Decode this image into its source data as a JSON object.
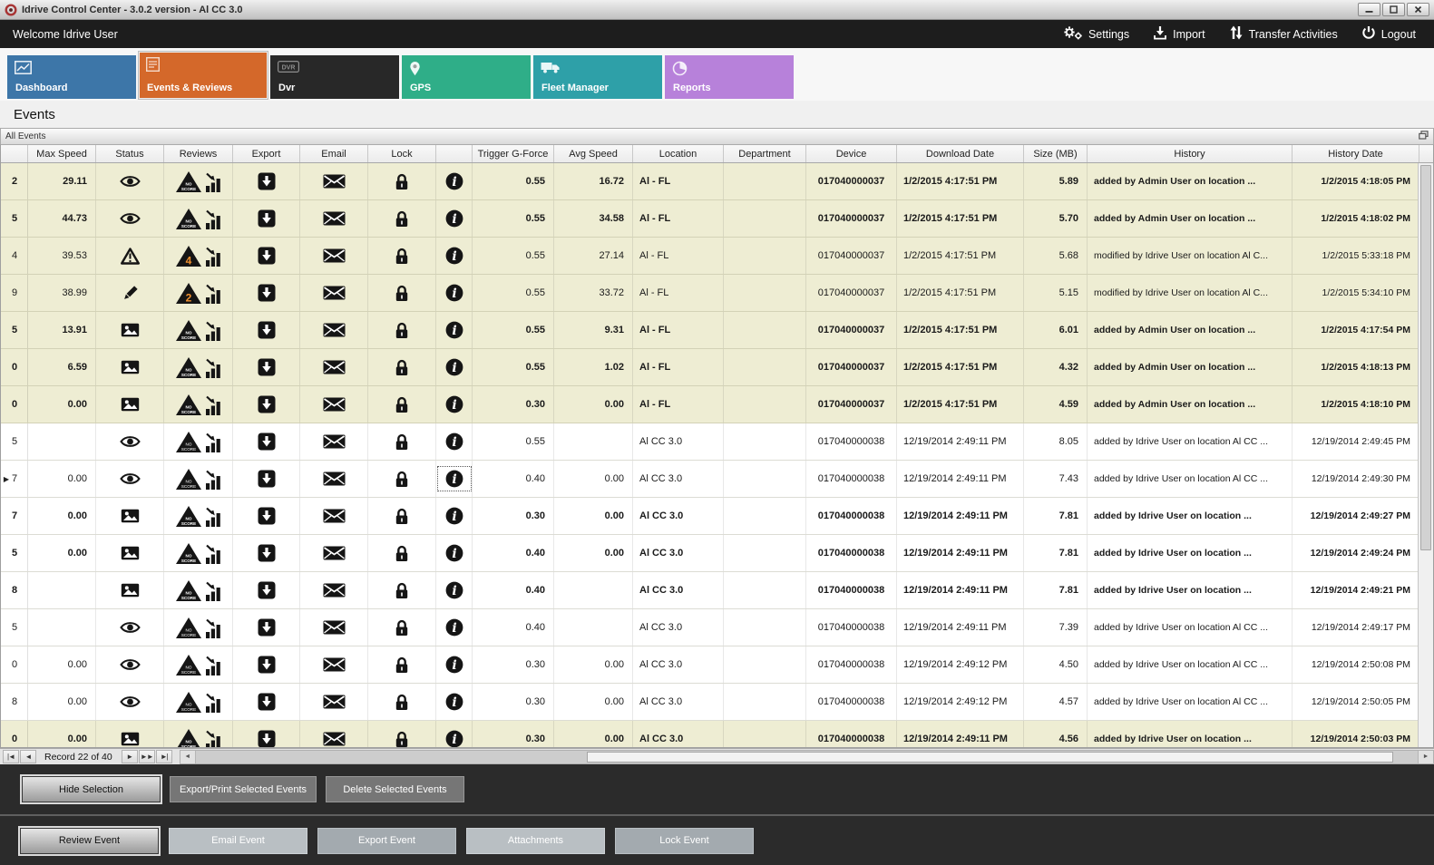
{
  "window": {
    "title": "Idrive Control Center - 3.0.2 version - Al CC 3.0"
  },
  "topbar": {
    "welcome": "Welcome Idrive User",
    "actions": [
      {
        "label": "Settings",
        "icon": "gears-icon"
      },
      {
        "label": "Import",
        "icon": "import-icon"
      },
      {
        "label": "Transfer Activities",
        "icon": "transfer-icon"
      },
      {
        "label": "Logout",
        "icon": "power-icon"
      }
    ]
  },
  "tabs": [
    {
      "label": "Dashboard",
      "color": "#3D76A8",
      "active": false
    },
    {
      "label": "Events & Reviews",
      "color": "#D4682A",
      "active": true
    },
    {
      "label": "Dvr",
      "color": "#282828",
      "active": false
    },
    {
      "label": "GPS",
      "color": "#2FAE88",
      "active": false
    },
    {
      "label": "Fleet Manager",
      "color": "#2EA0A8",
      "active": false
    },
    {
      "label": "Reports",
      "color": "#B781DA",
      "active": false
    }
  ],
  "page_title": "Events",
  "panel": {
    "title": "All Events"
  },
  "table": {
    "columns": [
      "",
      "Max Speed",
      "Status",
      "Reviews",
      "Export",
      "Email",
      "Lock",
      "",
      "Trigger G-Force",
      "Avg Speed",
      "Location",
      "Department",
      "Device",
      "Download Date",
      "Size (MB)",
      "History",
      "History Date"
    ],
    "rows": [
      {
        "id": "2",
        "current": false,
        "focused": false,
        "bold": true,
        "shade": "beige",
        "max_speed": "29.11",
        "status_icon": "eye",
        "review_badge": "NO SCORE",
        "trigger_g_force": "0.55",
        "avg_speed": "16.72",
        "location": "Al - FL",
        "department": "",
        "device": "017040000037",
        "download_date": "1/2/2015 4:17:51 PM",
        "size_mb": "5.89",
        "history": "added by Admin User on location ...",
        "history_date": "1/2/2015 4:18:05 PM"
      },
      {
        "id": "5",
        "current": false,
        "focused": false,
        "bold": true,
        "shade": "beige",
        "max_speed": "44.73",
        "status_icon": "eye",
        "review_badge": "NO SCORE",
        "trigger_g_force": "0.55",
        "avg_speed": "34.58",
        "location": "Al - FL",
        "department": "",
        "device": "017040000037",
        "download_date": "1/2/2015 4:17:51 PM",
        "size_mb": "5.70",
        "history": "added by Admin User on location ...",
        "history_date": "1/2/2015 4:18:02 PM"
      },
      {
        "id": "4",
        "current": false,
        "focused": false,
        "bold": false,
        "shade": "beige",
        "max_speed": "39.53",
        "status_icon": "warning",
        "review_badge": "4",
        "trigger_g_force": "0.55",
        "avg_speed": "27.14",
        "location": "Al - FL",
        "department": "",
        "device": "017040000037",
        "download_date": "1/2/2015 4:17:51 PM",
        "size_mb": "5.68",
        "history": "modified by Idrive User on location Al C...",
        "history_date": "1/2/2015 5:33:18 PM"
      },
      {
        "id": "9",
        "current": false,
        "focused": false,
        "bold": false,
        "shade": "beige",
        "max_speed": "38.99",
        "status_icon": "pencil",
        "review_badge": "2",
        "trigger_g_force": "0.55",
        "avg_speed": "33.72",
        "location": "Al - FL",
        "department": "",
        "device": "017040000037",
        "download_date": "1/2/2015 4:17:51 PM",
        "size_mb": "5.15",
        "history": "modified by Idrive User on location Al C...",
        "history_date": "1/2/2015 5:34:10 PM"
      },
      {
        "id": "5",
        "current": false,
        "focused": false,
        "bold": true,
        "shade": "beige",
        "max_speed": "13.91",
        "status_icon": "image",
        "review_badge": "NO SCORE",
        "trigger_g_force": "0.55",
        "avg_speed": "9.31",
        "location": "Al - FL",
        "department": "",
        "device": "017040000037",
        "download_date": "1/2/2015 4:17:51 PM",
        "size_mb": "6.01",
        "history": "added by Admin User on location ...",
        "history_date": "1/2/2015 4:17:54 PM"
      },
      {
        "id": "0",
        "current": false,
        "focused": false,
        "bold": true,
        "shade": "beige",
        "max_speed": "6.59",
        "status_icon": "image",
        "review_badge": "NO SCORE",
        "trigger_g_force": "0.55",
        "avg_speed": "1.02",
        "location": "Al - FL",
        "department": "",
        "device": "017040000037",
        "download_date": "1/2/2015 4:17:51 PM",
        "size_mb": "4.32",
        "history": "added by Admin User on location ...",
        "history_date": "1/2/2015 4:18:13 PM"
      },
      {
        "id": "0",
        "current": false,
        "focused": false,
        "bold": true,
        "shade": "beige",
        "max_speed": "0.00",
        "status_icon": "image",
        "review_badge": "NO SCORE",
        "trigger_g_force": "0.30",
        "avg_speed": "0.00",
        "location": "Al - FL",
        "department": "",
        "device": "017040000037",
        "download_date": "1/2/2015 4:17:51 PM",
        "size_mb": "4.59",
        "history": "added by Admin User on location ...",
        "history_date": "1/2/2015 4:18:10 PM"
      },
      {
        "id": "5",
        "current": false,
        "focused": false,
        "bold": false,
        "shade": "white",
        "max_speed": "",
        "status_icon": "eye",
        "review_badge": "NO SCORE",
        "trigger_g_force": "0.55",
        "avg_speed": "",
        "location": "Al CC 3.0",
        "department": "",
        "device": "017040000038",
        "download_date": "12/19/2014 2:49:11 PM",
        "size_mb": "8.05",
        "history": "added by Idrive User on location Al CC ...",
        "history_date": "12/19/2014 2:49:45 PM"
      },
      {
        "id": "7",
        "current": true,
        "focused": true,
        "bold": false,
        "shade": "white",
        "max_speed": "0.00",
        "status_icon": "eye",
        "review_badge": "NO SCORE",
        "trigger_g_force": "0.40",
        "avg_speed": "0.00",
        "location": "Al CC 3.0",
        "department": "",
        "device": "017040000038",
        "download_date": "12/19/2014 2:49:11 PM",
        "size_mb": "7.43",
        "history": "added by Idrive User on location Al CC ...",
        "history_date": "12/19/2014 2:49:30 PM"
      },
      {
        "id": "7",
        "current": false,
        "focused": false,
        "bold": true,
        "shade": "white",
        "max_speed": "0.00",
        "status_icon": "image",
        "review_badge": "NO SCORE",
        "trigger_g_force": "0.30",
        "avg_speed": "0.00",
        "location": "Al CC 3.0",
        "department": "",
        "device": "017040000038",
        "download_date": "12/19/2014 2:49:11 PM",
        "size_mb": "7.81",
        "history": "added by Idrive User on location ...",
        "history_date": "12/19/2014 2:49:27 PM"
      },
      {
        "id": "5",
        "current": false,
        "focused": false,
        "bold": true,
        "shade": "white",
        "max_speed": "0.00",
        "status_icon": "image",
        "review_badge": "NO SCORE",
        "trigger_g_force": "0.40",
        "avg_speed": "0.00",
        "location": "Al CC 3.0",
        "department": "",
        "device": "017040000038",
        "download_date": "12/19/2014 2:49:11 PM",
        "size_mb": "7.81",
        "history": "added by Idrive User on location ...",
        "history_date": "12/19/2014 2:49:24 PM"
      },
      {
        "id": "8",
        "current": false,
        "focused": false,
        "bold": true,
        "shade": "white",
        "max_speed": "",
        "status_icon": "image",
        "review_badge": "NO SCORE",
        "trigger_g_force": "0.40",
        "avg_speed": "",
        "location": "Al CC 3.0",
        "department": "",
        "device": "017040000038",
        "download_date": "12/19/2014 2:49:11 PM",
        "size_mb": "7.81",
        "history": "added by Idrive User on location ...",
        "history_date": "12/19/2014 2:49:21 PM"
      },
      {
        "id": "5",
        "current": false,
        "focused": false,
        "bold": false,
        "shade": "white",
        "max_speed": "",
        "status_icon": "eye",
        "review_badge": "NO SCORE",
        "trigger_g_force": "0.40",
        "avg_speed": "",
        "location": "Al CC 3.0",
        "department": "",
        "device": "017040000038",
        "download_date": "12/19/2014 2:49:11 PM",
        "size_mb": "7.39",
        "history": "added by Idrive User on location Al CC ...",
        "history_date": "12/19/2014 2:49:17 PM"
      },
      {
        "id": "0",
        "current": false,
        "focused": false,
        "bold": false,
        "shade": "white",
        "max_speed": "0.00",
        "status_icon": "eye",
        "review_badge": "NO SCORE",
        "trigger_g_force": "0.30",
        "avg_speed": "0.00",
        "location": "Al CC 3.0",
        "department": "",
        "device": "017040000038",
        "download_date": "12/19/2014 2:49:12 PM",
        "size_mb": "4.50",
        "history": "added by Idrive User on location Al CC ...",
        "history_date": "12/19/2014 2:50:08 PM"
      },
      {
        "id": "8",
        "current": false,
        "focused": false,
        "bold": false,
        "shade": "white",
        "max_speed": "0.00",
        "status_icon": "eye",
        "review_badge": "NO SCORE",
        "trigger_g_force": "0.30",
        "avg_speed": "0.00",
        "location": "Al CC 3.0",
        "department": "",
        "device": "017040000038",
        "download_date": "12/19/2014 2:49:12 PM",
        "size_mb": "4.57",
        "history": "added by Idrive User on location Al CC ...",
        "history_date": "12/19/2014 2:50:05 PM"
      },
      {
        "id": "0",
        "current": false,
        "focused": false,
        "bold": true,
        "shade": "beige",
        "max_speed": "0.00",
        "status_icon": "image",
        "review_badge": "NO SCORE",
        "trigger_g_force": "0.30",
        "avg_speed": "0.00",
        "location": "Al CC 3.0",
        "department": "",
        "device": "017040000038",
        "download_date": "12/19/2014 2:49:11 PM",
        "size_mb": "4.56",
        "history": "added by Idrive User on location ...",
        "history_date": "12/19/2014 2:50:03 PM"
      }
    ]
  },
  "pager": {
    "label": "Record 22 of 40"
  },
  "footer": {
    "selection_actions": [
      {
        "label": "Hide Selection",
        "style": "focus"
      },
      {
        "label": "Export/Print Selected Events",
        "style": "dark"
      },
      {
        "label": "Delete Selected  Events",
        "style": "dark"
      }
    ],
    "event_actions": [
      {
        "label": "Review Event",
        "style": "focus"
      },
      {
        "label": "Email Event",
        "style": "light"
      },
      {
        "label": "Export Event",
        "style": "mid"
      },
      {
        "label": "Attachments",
        "style": "light"
      },
      {
        "label": "Lock Event",
        "style": "mid"
      }
    ]
  }
}
